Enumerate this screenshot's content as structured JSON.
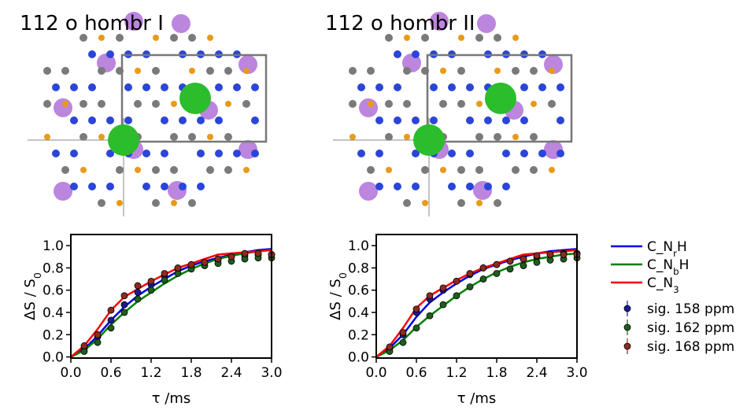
{
  "chart_data": [
    {
      "type": "line",
      "title": "112 o hombr I",
      "x_label": "τ /ms",
      "y_label": [
        {
          "text": "ΔS / S"
        },
        {
          "text": "0",
          "sub": true
        }
      ],
      "xlim": [
        0,
        3.0
      ],
      "ylim": [
        -0.01,
        1.1
      ],
      "xticks": [
        {
          "value": 0,
          "label": "0.0"
        },
        {
          "value": 0.6,
          "label": "0.6"
        },
        {
          "value": 1.2,
          "label": "1.2"
        },
        {
          "value": 1.8,
          "label": "1.8"
        },
        {
          "value": 2.4,
          "label": "2.4"
        },
        {
          "value": 3.0,
          "label": "3.0"
        }
      ],
      "yticks": [
        {
          "value": 0,
          "label": "0.0"
        },
        {
          "value": 0.2,
          "label": "0.2"
        },
        {
          "value": 0.4,
          "label": "0.4"
        },
        {
          "value": 0.6,
          "label": "0.6"
        },
        {
          "value": 0.8,
          "label": "0.8"
        },
        {
          "value": 1.0,
          "label": "1.0"
        }
      ],
      "series": [
        {
          "name": [
            {
              "text": "C_N"
            },
            {
              "text": "r",
              "sub": true
            },
            {
              "text": "H"
            }
          ],
          "kind": "line",
          "color": "#0000e0",
          "x": [
            0,
            0.2,
            0.4,
            0.6,
            0.8,
            1.0,
            1.2,
            1.4,
            1.6,
            1.8,
            2.0,
            2.2,
            2.4,
            2.6,
            2.8,
            3.0
          ],
          "values": [
            0,
            0.07,
            0.19,
            0.33,
            0.45,
            0.55,
            0.63,
            0.7,
            0.77,
            0.82,
            0.86,
            0.89,
            0.92,
            0.94,
            0.96,
            0.97
          ]
        },
        {
          "name": [
            {
              "text": "C_N"
            },
            {
              "text": "b",
              "sub": true
            },
            {
              "text": "H"
            }
          ],
          "kind": "line",
          "color": "#008000",
          "x": [
            0,
            0.2,
            0.4,
            0.6,
            0.8,
            1.0,
            1.2,
            1.4,
            1.6,
            1.8,
            2.0,
            2.2,
            2.4,
            2.6,
            2.8,
            3.0
          ],
          "values": [
            0,
            0.06,
            0.16,
            0.29,
            0.4,
            0.5,
            0.58,
            0.66,
            0.73,
            0.79,
            0.84,
            0.88,
            0.91,
            0.93,
            0.95,
            0.96
          ]
        },
        {
          "name": [
            {
              "text": "C_N"
            },
            {
              "text": "3",
              "sub": true
            }
          ],
          "kind": "line",
          "color": "#ff0000",
          "x": [
            0,
            0.2,
            0.4,
            0.6,
            0.8,
            1.0,
            1.2,
            1.4,
            1.6,
            1.8,
            2.0,
            2.2,
            2.4,
            2.6,
            2.8,
            3.0
          ],
          "values": [
            0,
            0.1,
            0.25,
            0.42,
            0.54,
            0.61,
            0.68,
            0.74,
            0.8,
            0.84,
            0.88,
            0.92,
            0.93,
            0.94,
            0.95,
            0.96
          ]
        },
        {
          "name": "sig. 158 ppm",
          "kind": "markers",
          "color": "#1a1a9a",
          "x": [
            0.2,
            0.4,
            0.6,
            0.8,
            1.0,
            1.2,
            1.4,
            1.6,
            1.8,
            2.0,
            2.2,
            2.4,
            2.6,
            2.8,
            3.0
          ],
          "values": [
            0.08,
            0.18,
            0.33,
            0.47,
            0.58,
            0.65,
            0.73,
            0.79,
            0.82,
            0.85,
            0.87,
            0.9,
            0.91,
            0.92,
            0.92
          ]
        },
        {
          "name": "sig. 162 ppm",
          "kind": "markers",
          "color": "#1d5e1d",
          "x": [
            0.2,
            0.4,
            0.6,
            0.8,
            1.0,
            1.2,
            1.4,
            1.6,
            1.8,
            2.0,
            2.2,
            2.4,
            2.6,
            2.8,
            3.0
          ],
          "values": [
            0.05,
            0.13,
            0.26,
            0.4,
            0.52,
            0.6,
            0.69,
            0.75,
            0.79,
            0.82,
            0.84,
            0.86,
            0.88,
            0.89,
            0.89
          ]
        },
        {
          "name": "sig. 168 ppm",
          "kind": "markers",
          "color": "#8e2a22",
          "x": [
            0.2,
            0.4,
            0.6,
            0.8,
            1.0,
            1.2,
            1.4,
            1.6,
            1.8,
            2.0,
            2.2,
            2.4,
            2.6,
            2.8,
            3.0
          ],
          "values": [
            0.1,
            0.2,
            0.42,
            0.55,
            0.64,
            0.68,
            0.75,
            0.8,
            0.83,
            0.85,
            0.88,
            0.9,
            0.93,
            0.93,
            0.92
          ]
        }
      ]
    },
    {
      "type": "line",
      "title": "112 o hombr II",
      "x_label": "τ /ms",
      "y_label": [
        {
          "text": "ΔS / S"
        },
        {
          "text": "0",
          "sub": true
        }
      ],
      "xlim": [
        0,
        3.0
      ],
      "ylim": [
        -0.01,
        1.1
      ],
      "xticks": [
        {
          "value": 0,
          "label": "0.0"
        },
        {
          "value": 0.6,
          "label": "0.6"
        },
        {
          "value": 1.2,
          "label": "1.2"
        },
        {
          "value": 1.8,
          "label": "1.8"
        },
        {
          "value": 2.4,
          "label": "2.4"
        },
        {
          "value": 3.0,
          "label": "3.0"
        }
      ],
      "yticks": [
        {
          "value": 0,
          "label": "0.0"
        },
        {
          "value": 0.2,
          "label": "0.2"
        },
        {
          "value": 0.4,
          "label": "0.4"
        },
        {
          "value": 0.6,
          "label": "0.6"
        },
        {
          "value": 0.8,
          "label": "0.8"
        },
        {
          "value": 1.0,
          "label": "1.0"
        }
      ],
      "series": [
        {
          "kind": "line",
          "color": "#0000e0",
          "x": [
            0,
            0.2,
            0.4,
            0.6,
            0.8,
            1.0,
            1.2,
            1.4,
            1.6,
            1.8,
            2.0,
            2.2,
            2.4,
            2.6,
            2.8,
            3.0
          ],
          "values": [
            0,
            0.08,
            0.2,
            0.36,
            0.49,
            0.58,
            0.66,
            0.73,
            0.79,
            0.83,
            0.87,
            0.9,
            0.93,
            0.95,
            0.96,
            0.97
          ]
        },
        {
          "kind": "line",
          "color": "#008000",
          "x": [
            0,
            0.2,
            0.4,
            0.6,
            0.8,
            1.0,
            1.2,
            1.4,
            1.6,
            1.8,
            2.0,
            2.2,
            2.4,
            2.6,
            2.8,
            3.0
          ],
          "values": [
            0,
            0.06,
            0.15,
            0.27,
            0.37,
            0.46,
            0.55,
            0.63,
            0.7,
            0.76,
            0.81,
            0.85,
            0.88,
            0.9,
            0.92,
            0.93
          ]
        },
        {
          "kind": "line",
          "color": "#ff0000",
          "x": [
            0,
            0.2,
            0.4,
            0.6,
            0.8,
            1.0,
            1.2,
            1.4,
            1.6,
            1.8,
            2.0,
            2.2,
            2.4,
            2.6,
            2.8,
            3.0
          ],
          "values": [
            0,
            0.1,
            0.26,
            0.44,
            0.55,
            0.62,
            0.69,
            0.75,
            0.8,
            0.84,
            0.88,
            0.92,
            0.93,
            0.94,
            0.95,
            0.96
          ]
        },
        {
          "kind": "markers",
          "color": "#1a1a9a",
          "x": [
            0.2,
            0.4,
            0.6,
            0.8,
            1.0,
            1.2,
            1.4,
            1.6,
            1.8,
            2.0,
            2.2,
            2.4,
            2.6,
            2.8,
            3.0
          ],
          "values": [
            0.08,
            0.2,
            0.4,
            0.52,
            0.6,
            0.68,
            0.74,
            0.8,
            0.83,
            0.86,
            0.88,
            0.9,
            0.92,
            0.93,
            0.93
          ]
        },
        {
          "kind": "markers",
          "color": "#1d5e1d",
          "x": [
            0.2,
            0.4,
            0.6,
            0.8,
            1.0,
            1.2,
            1.4,
            1.6,
            1.8,
            2.0,
            2.2,
            2.4,
            2.6,
            2.8,
            3.0
          ],
          "values": [
            0.05,
            0.13,
            0.26,
            0.37,
            0.47,
            0.55,
            0.63,
            0.7,
            0.75,
            0.79,
            0.82,
            0.85,
            0.87,
            0.88,
            0.89
          ]
        },
        {
          "kind": "markers",
          "color": "#8e2a22",
          "x": [
            0.2,
            0.4,
            0.6,
            0.8,
            1.0,
            1.2,
            1.4,
            1.6,
            1.8,
            2.0,
            2.2,
            2.4,
            2.6,
            2.8,
            3.0
          ],
          "values": [
            0.09,
            0.22,
            0.43,
            0.55,
            0.62,
            0.68,
            0.75,
            0.8,
            0.83,
            0.86,
            0.88,
            0.91,
            0.92,
            0.92,
            0.92
          ]
        }
      ]
    }
  ]
}
